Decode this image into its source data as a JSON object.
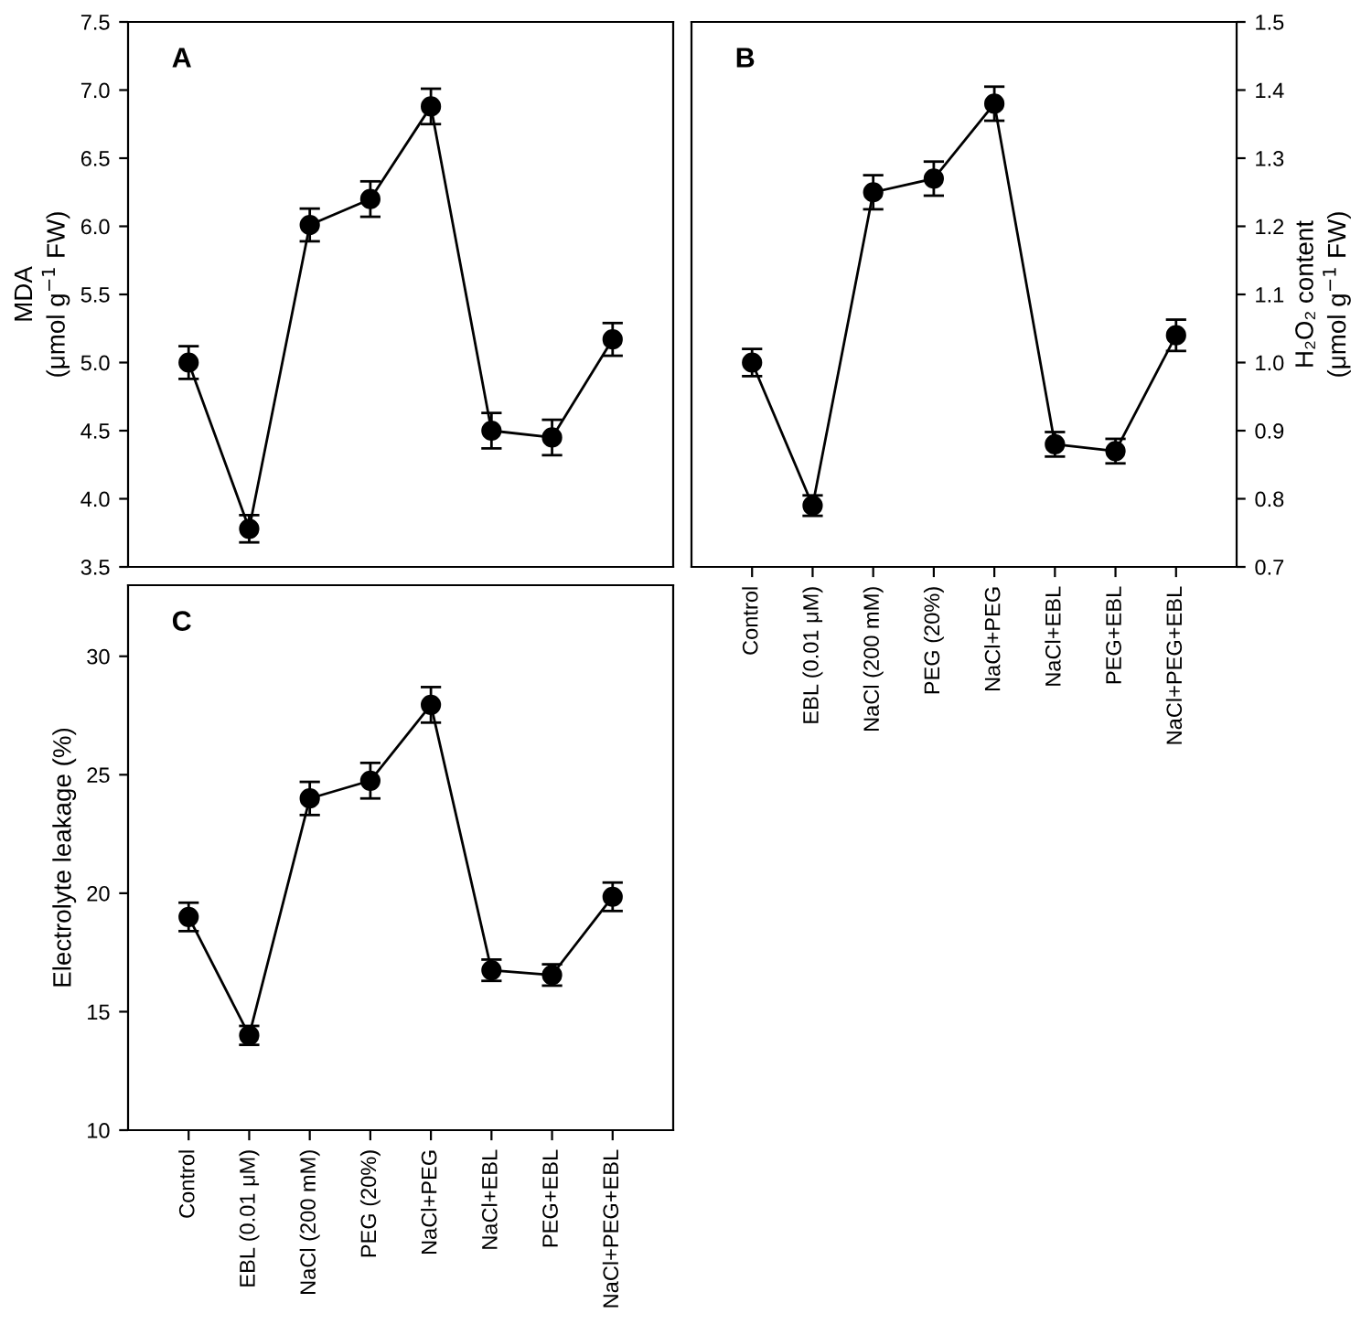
{
  "chart_data": [
    {
      "type": "line",
      "categories": [
        null,
        null,
        null,
        null,
        null,
        null,
        null,
        null
      ],
      "series": [
        {
          "color": "#000000",
          "values": [
            5.0,
            3.78,
            6.01,
            6.2,
            6.88,
            4.5,
            4.45,
            5.17
          ],
          "errors": [
            0.12,
            0.1,
            0.12,
            0.13,
            0.13,
            0.13,
            0.13,
            0.12
          ]
        }
      ],
      "ylabel": "MDA\n(μmol g$^{−1}$ FW)",
      "ylim": [
        3.5,
        7.5
      ],
      "yticks": [
        3.5,
        {
          "value": 4,
          "label": "4.0"
        },
        4.5,
        {
          "value": 5,
          "label": "5.0"
        },
        5.5,
        {
          "value": 6,
          "label": "6.0"
        },
        6.5,
        {
          "value": 7,
          "label": "7.0"
        },
        7.5
      ],
      "annotations": [
        "A"
      ],
      "marker": "circle",
      "line_style": "solid",
      "grid": false,
      "legend": false,
      "tick_labels": "y"
    },
    {
      "type": "line",
      "categories": [
        "Control",
        "EBL (0.01 μM)",
        "NaCl (200 mM)",
        "PEG (20%)",
        "NaCl+PEG",
        "NaCl+EBL",
        "PEG+EBL",
        "NaCl+PEG+EBL"
      ],
      "series": [
        {
          "color": "#000000",
          "values": [
            19.0,
            14.0,
            24.0,
            24.75,
            27.95,
            16.75,
            16.55,
            19.85
          ],
          "errors": [
            0.6,
            0.4,
            0.7,
            0.75,
            0.75,
            0.45,
            0.45,
            0.6
          ]
        }
      ],
      "ylabel": "Electrolyte leakage (%)",
      "ylim": [
        10,
        33
      ],
      "yticks": [
        10,
        15,
        20,
        25,
        30
      ],
      "annotations": [
        "C"
      ],
      "marker": "circle",
      "line_style": "solid",
      "grid": false,
      "legend": false
    },
    {
      "type": "line",
      "categories": [
        "Control",
        "EBL (0.01 μM)",
        "NaCl (200 mM)",
        "PEG (20%)",
        "NaCl+PEG",
        "NaCl+EBL",
        "PEG+EBL",
        "NaCl+PEG+EBL"
      ],
      "series": [
        {
          "color": "#000000",
          "axis": "y2",
          "values": [
            1.0,
            0.79,
            1.25,
            1.27,
            1.38,
            0.88,
            0.87,
            1.04
          ],
          "errors": [
            0.02,
            0.015,
            0.025,
            0.025,
            0.025,
            0.018,
            0.018,
            0.023
          ]
        }
      ],
      "y2label": "H₂O₂ content\n(μmol g$^{−1}$ FW)",
      "y2lim": [
        0.7,
        1.5
      ],
      "y2ticks": [
        0.7,
        0.8,
        0.9,
        {
          "value": 1,
          "label": "1.0"
        },
        1.1,
        1.2,
        1.3,
        1.4,
        1.5
      ],
      "annotations": [
        "B"
      ],
      "marker": "circle",
      "line_style": "solid",
      "grid": false,
      "legend": false
    }
  ]
}
